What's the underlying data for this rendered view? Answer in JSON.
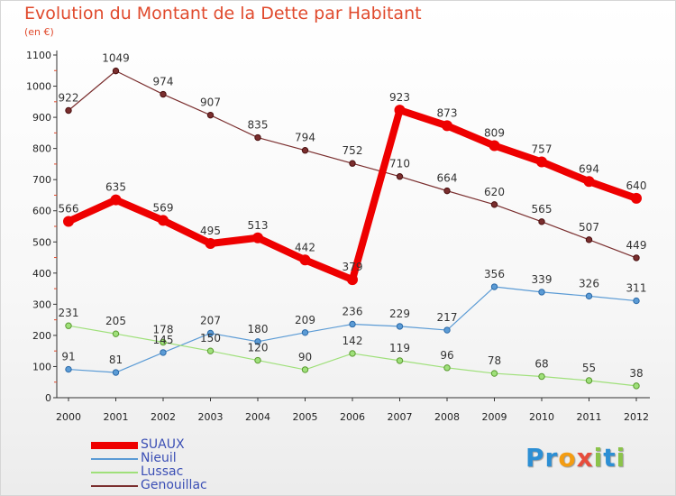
{
  "title": "Evolution du Montant de la Dette par Habitant",
  "subtitle": "(en €)",
  "logo": {
    "text": "Proxiti",
    "letters": [
      "P",
      "r",
      "o",
      "x",
      "i",
      "t",
      "i"
    ],
    "colors": [
      "#2d8fd4",
      "#2d8fd4",
      "#f39c12",
      "#e74c3c",
      "#8bc34a",
      "#2d8fd4",
      "#8bc34a"
    ]
  },
  "chart_data": {
    "type": "line",
    "title": "Evolution du Montant de la Dette par Habitant",
    "ylabel": "(en €)",
    "xlabel": "",
    "x": [
      "2000",
      "2001",
      "2002",
      "2003",
      "2004",
      "2005",
      "2006",
      "2007",
      "2008",
      "2009",
      "2010",
      "2011",
      "2012"
    ],
    "ylim": [
      0,
      1100
    ],
    "yticks": [
      0,
      100,
      200,
      300,
      400,
      500,
      600,
      700,
      800,
      900,
      1000,
      1100
    ],
    "grid": false,
    "legend_position": "bottom-left",
    "series": [
      {
        "name": "SUAUX",
        "color": "#ee0000",
        "values": [
          566,
          635,
          569,
          495,
          513,
          442,
          379,
          923,
          873,
          809,
          757,
          694,
          640
        ]
      },
      {
        "name": "Nieuil",
        "color": "#5b9bd5",
        "values": [
          91,
          81,
          145,
          207,
          180,
          209,
          236,
          229,
          217,
          356,
          339,
          326,
          311
        ]
      },
      {
        "name": "Lussac",
        "color": "#9fe07a",
        "values": [
          231,
          205,
          178,
          150,
          120,
          90,
          142,
          119,
          96,
          78,
          68,
          55,
          38
        ]
      },
      {
        "name": "Genouillac",
        "color": "#7a2e2e",
        "values": [
          922,
          1049,
          974,
          907,
          835,
          794,
          752,
          710,
          664,
          620,
          565,
          507,
          449
        ]
      }
    ]
  }
}
